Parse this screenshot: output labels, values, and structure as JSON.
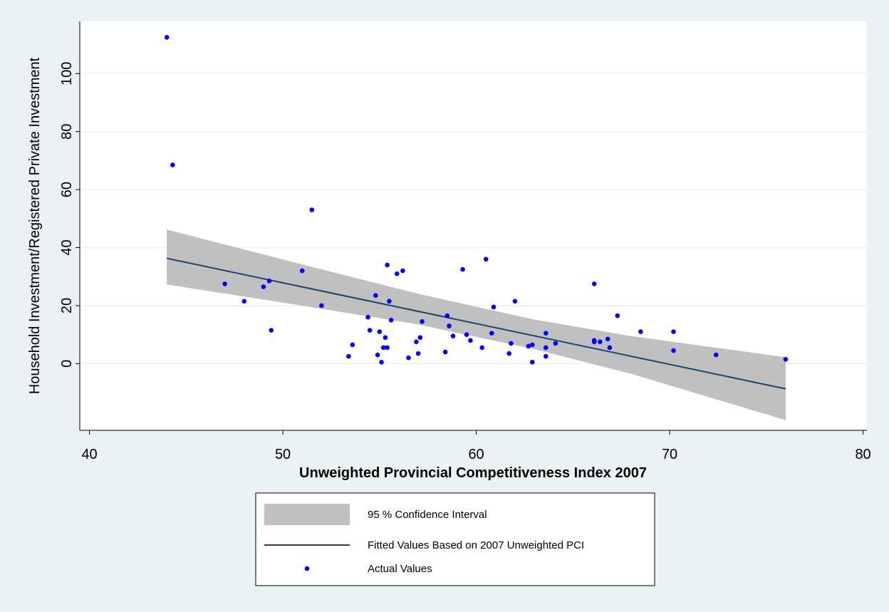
{
  "chart_data": {
    "type": "scatter",
    "xlabel": "Unweighted Provincial Competitiveness Index 2007",
    "ylabel": "Household Investment/Registered Private Investment",
    "xlim": [
      39.5,
      80.2
    ],
    "ylim": [
      -23,
      118
    ],
    "x_ticks": [
      40,
      50,
      60,
      70,
      80
    ],
    "y_ticks": [
      0,
      20,
      40,
      60,
      80,
      100
    ],
    "grid": true,
    "legend_position": "bottom",
    "colors": {
      "background": "#eaf2f3",
      "plot_background": "#ffffff",
      "confidence_band": "#c0c0c0",
      "fitted_line": "#1a476f",
      "points": "#0000ff",
      "grid": "#eaf2f3"
    },
    "legend": [
      {
        "label": "95 % Confidence Interval",
        "kind": "band"
      },
      {
        "label": "Fitted Values Based on 2007 Unweighted PCI",
        "kind": "line"
      },
      {
        "label": "Actual Values",
        "kind": "point"
      }
    ],
    "series": [
      {
        "name": "Actual Values",
        "points": [
          [
            44.0,
            112.5
          ],
          [
            44.3,
            68.5
          ],
          [
            47.0,
            27.5
          ],
          [
            48.0,
            21.5
          ],
          [
            49.0,
            26.5
          ],
          [
            49.3,
            28.5
          ],
          [
            49.4,
            11.5
          ],
          [
            51.0,
            32.0
          ],
          [
            51.5,
            53.0
          ],
          [
            52.0,
            20.0
          ],
          [
            53.4,
            2.5
          ],
          [
            53.6,
            6.5
          ],
          [
            54.4,
            16.0
          ],
          [
            54.5,
            11.5
          ],
          [
            54.8,
            23.5
          ],
          [
            54.9,
            3.0
          ],
          [
            55.0,
            11.0
          ],
          [
            55.1,
            0.5
          ],
          [
            55.2,
            5.5
          ],
          [
            55.3,
            9.0
          ],
          [
            55.4,
            34.0
          ],
          [
            55.4,
            5.5
          ],
          [
            55.5,
            21.5
          ],
          [
            55.6,
            15.0
          ],
          [
            55.9,
            31.0
          ],
          [
            56.2,
            32.0
          ],
          [
            56.5,
            2.0
          ],
          [
            56.9,
            7.5
          ],
          [
            57.0,
            3.5
          ],
          [
            57.1,
            9.0
          ],
          [
            57.2,
            14.5
          ],
          [
            58.4,
            4.0
          ],
          [
            58.5,
            16.5
          ],
          [
            58.6,
            13.0
          ],
          [
            58.8,
            9.5
          ],
          [
            59.3,
            32.5
          ],
          [
            59.5,
            10.0
          ],
          [
            59.7,
            8.0
          ],
          [
            60.3,
            5.5
          ],
          [
            60.5,
            36.0
          ],
          [
            60.8,
            10.5
          ],
          [
            60.9,
            19.5
          ],
          [
            61.7,
            3.5
          ],
          [
            61.8,
            7.0
          ],
          [
            62.0,
            21.5
          ],
          [
            62.7,
            6.0
          ],
          [
            62.9,
            6.5
          ],
          [
            62.9,
            0.5
          ],
          [
            63.6,
            10.5
          ],
          [
            63.6,
            2.5
          ],
          [
            63.6,
            5.5
          ],
          [
            64.1,
            7.0
          ],
          [
            66.1,
            27.5
          ],
          [
            66.1,
            7.5
          ],
          [
            66.1,
            8.0
          ],
          [
            66.4,
            7.5
          ],
          [
            66.8,
            8.5
          ],
          [
            66.9,
            5.5
          ],
          [
            67.3,
            16.5
          ],
          [
            68.5,
            11.0
          ],
          [
            70.2,
            11.0
          ],
          [
            70.2,
            4.5
          ],
          [
            72.4,
            3.0
          ],
          [
            76.0,
            1.5
          ]
        ]
      },
      {
        "name": "Fitted Values Based on 2007 Unweighted PCI",
        "points": [
          [
            44.0,
            36.3
          ],
          [
            76.0,
            -8.7
          ]
        ]
      },
      {
        "name": "95 % Confidence Interval",
        "upper": [
          [
            44.0,
            46.2
          ],
          [
            51.0,
            34.2
          ],
          [
            57.0,
            24.1
          ],
          [
            60.0,
            19.6
          ],
          [
            63.0,
            15.2
          ],
          [
            68.0,
            9.5
          ],
          [
            76.0,
            2.2
          ]
        ],
        "lower": [
          [
            44.0,
            27.3
          ],
          [
            51.0,
            20.0
          ],
          [
            57.0,
            13.5
          ],
          [
            60.0,
            9.2
          ],
          [
            63.0,
            5.0
          ],
          [
            68.0,
            -3.5
          ],
          [
            76.0,
            -19.5
          ]
        ]
      }
    ]
  }
}
